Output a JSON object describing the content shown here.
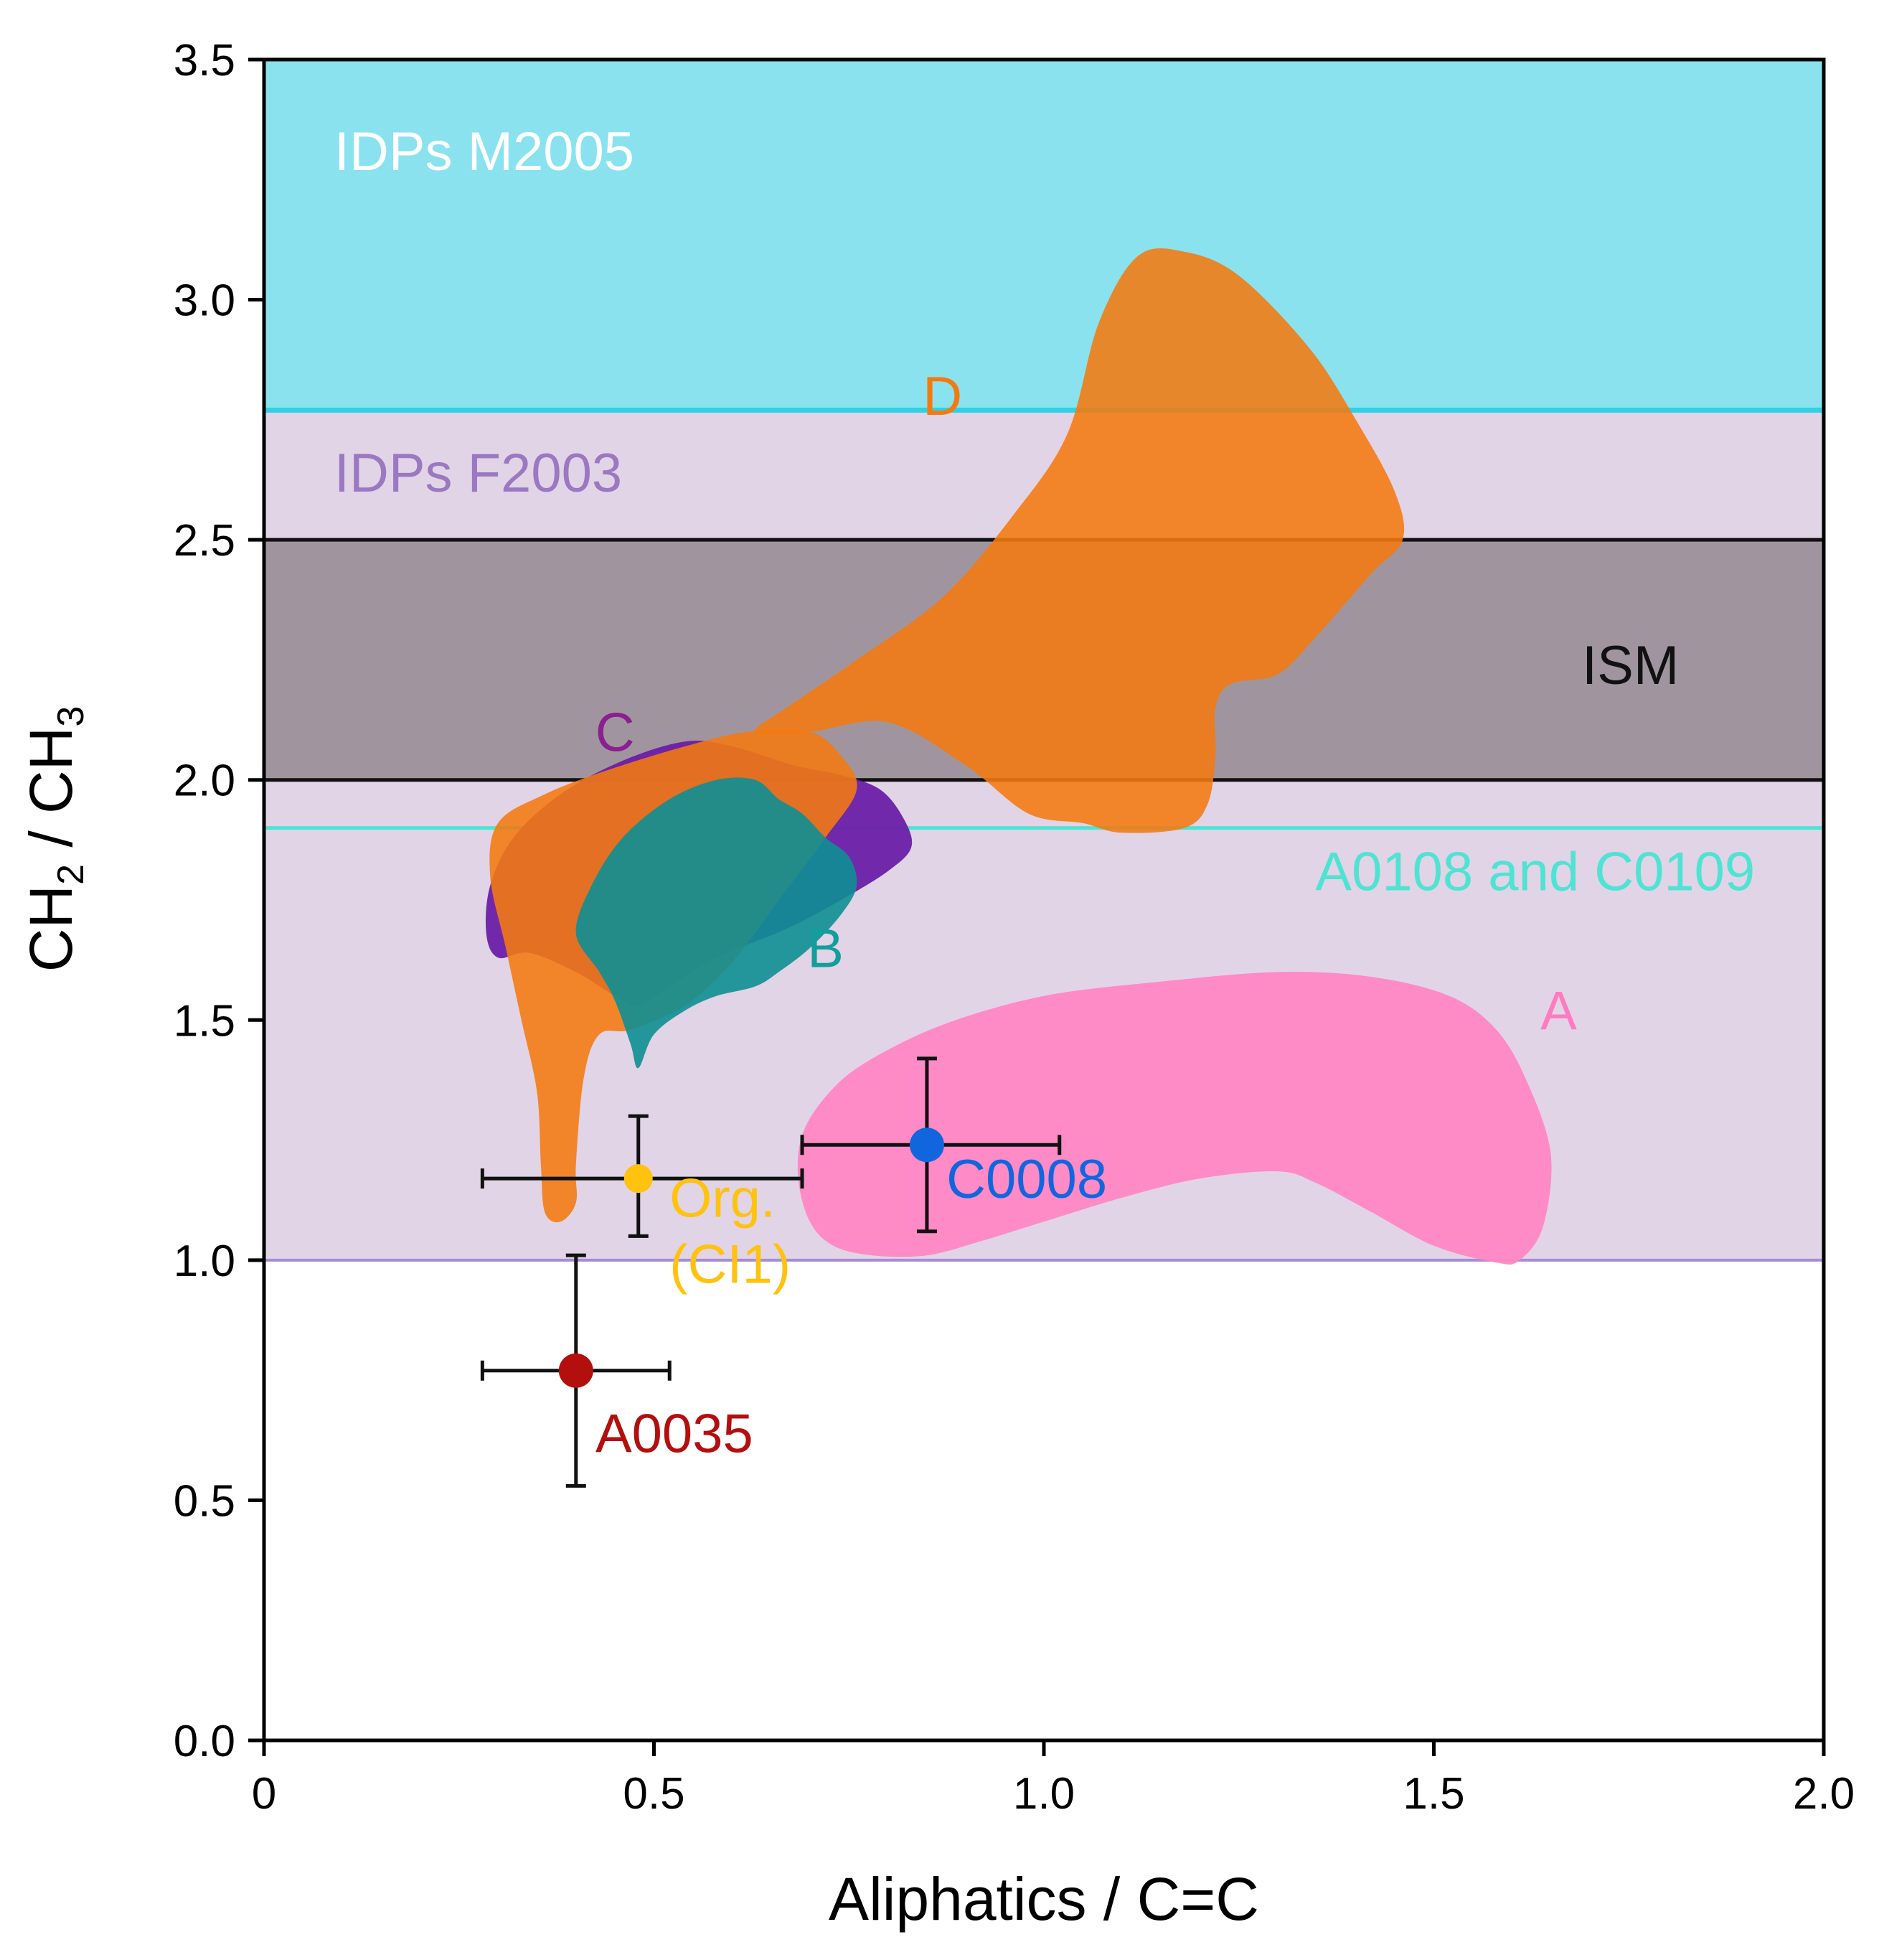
{
  "chart_data": {
    "type": "scatter",
    "xlabel": "Aliphatics / C=C",
    "ylabel": {
      "prefix": "CH",
      "sub1": "2",
      "mid": " / CH",
      "sub2": "3"
    },
    "xlim": [
      0,
      2.0
    ],
    "ylim": [
      0,
      3.5
    ],
    "x_ticks": [
      {
        "value": 0,
        "label": "0"
      },
      {
        "value": 0.5,
        "label": "0.5"
      },
      {
        "value": 1.0,
        "label": "1.0"
      },
      {
        "value": 1.5,
        "label": "1.5"
      },
      {
        "value": 2.0,
        "label": "2.0"
      }
    ],
    "y_ticks": [
      {
        "value": 0,
        "label": "0.0"
      },
      {
        "value": 0.5,
        "label": "0.5"
      },
      {
        "value": 1.0,
        "label": "1.0"
      },
      {
        "value": 1.5,
        "label": "1.5"
      },
      {
        "value": 2.0,
        "label": "2.0"
      },
      {
        "value": 2.5,
        "label": "2.5"
      },
      {
        "value": 3.0,
        "label": "3.0"
      },
      {
        "value": 3.5,
        "label": "3.5"
      }
    ],
    "bands": [
      {
        "name": "IDPs M2005",
        "label": "IDPs M2005",
        "y0": 2.77,
        "y1": 3.5,
        "fill": "#8ae2ef",
        "label_color": "#ffffff",
        "label_x": 0.09,
        "label_y": 3.27
      },
      {
        "name": "IDPs F2003",
        "label": "IDPs F2003",
        "y0": 1.0,
        "y1": 2.77,
        "fill": "#e1d4e6",
        "label_color": "#9b78c2",
        "label_x": 0.09,
        "label_y": 2.6
      },
      {
        "name": "ISM",
        "label": "ISM",
        "y0": 2.0,
        "y1": 2.5,
        "fill": "#a0959f",
        "label_color": "#111111",
        "label_x": 1.69,
        "label_y": 2.2
      }
    ],
    "lines": [
      {
        "name": "IDPs M2005 boundary",
        "y": 2.77,
        "color": "#2fd1e4",
        "width": 7
      },
      {
        "name": "ISM upper",
        "y": 2.5,
        "color": "#111111",
        "width": 5
      },
      {
        "name": "ISM lower",
        "y": 2.0,
        "color": "#111111",
        "width": 5
      },
      {
        "name": "A0108 and C0109",
        "y": 1.9,
        "color": "#4fe3d3",
        "width": 5
      },
      {
        "name": "IDPs F2003 lower",
        "y": 1.0,
        "color": "#a78bd6",
        "width": 4
      }
    ],
    "line_labels": [
      {
        "text": "A0108 and C0109",
        "x": 1.63,
        "y": 1.77,
        "color": "#4fe3d3"
      }
    ],
    "regions": [
      {
        "name": "A",
        "label": "A",
        "color": "#ff86c4",
        "opacity": 0.95,
        "label_color": "#ff7ac0",
        "label_x": 1.66,
        "label_y": 1.48,
        "polygon": [
          [
            0.77,
            1.41
          ],
          [
            0.87,
            1.49
          ],
          [
            1.0,
            1.55
          ],
          [
            1.15,
            1.58
          ],
          [
            1.3,
            1.6
          ],
          [
            1.42,
            1.59
          ],
          [
            1.52,
            1.55
          ],
          [
            1.58,
            1.48
          ],
          [
            1.62,
            1.37
          ],
          [
            1.65,
            1.22
          ],
          [
            1.64,
            1.07
          ],
          [
            1.61,
            1.0
          ],
          [
            1.58,
            0.995
          ],
          [
            1.5,
            1.03
          ],
          [
            1.42,
            1.1
          ],
          [
            1.35,
            1.16
          ],
          [
            1.3,
            1.185
          ],
          [
            1.2,
            1.17
          ],
          [
            1.1,
            1.13
          ],
          [
            1.0,
            1.08
          ],
          [
            0.92,
            1.04
          ],
          [
            0.85,
            1.01
          ],
          [
            0.78,
            1.01
          ],
          [
            0.73,
            1.03
          ],
          [
            0.7,
            1.08
          ],
          [
            0.685,
            1.17
          ],
          [
            0.69,
            1.26
          ],
          [
            0.72,
            1.34
          ]
        ]
      },
      {
        "name": "C",
        "label": "C",
        "color": "#6a1fa8",
        "opacity": 0.95,
        "label_color": "#8a1f8f",
        "label_x": 0.45,
        "label_y": 2.06,
        "polygon": [
          [
            0.3,
            1.63
          ],
          [
            0.34,
            1.64
          ],
          [
            0.4,
            1.6
          ],
          [
            0.45,
            1.55
          ],
          [
            0.48,
            1.53
          ],
          [
            0.52,
            1.57
          ],
          [
            0.58,
            1.63
          ],
          [
            0.67,
            1.69
          ],
          [
            0.74,
            1.75
          ],
          [
            0.8,
            1.81
          ],
          [
            0.83,
            1.86
          ],
          [
            0.82,
            1.92
          ],
          [
            0.79,
            1.98
          ],
          [
            0.74,
            2.01
          ],
          [
            0.68,
            2.03
          ],
          [
            0.6,
            2.07
          ],
          [
            0.54,
            2.08
          ],
          [
            0.46,
            2.04
          ],
          [
            0.38,
            1.97
          ],
          [
            0.32,
            1.88
          ],
          [
            0.29,
            1.78
          ],
          [
            0.285,
            1.68
          ]
        ]
      },
      {
        "name": "D",
        "label": "D",
        "color": "#f47a10",
        "opacity": 0.88,
        "label_color": "#f47a10",
        "label_x": 0.87,
        "label_y": 2.76,
        "polygon": [
          [
            1.03,
            2.72
          ],
          [
            0.96,
            2.55
          ],
          [
            0.87,
            2.38
          ],
          [
            0.76,
            2.25
          ],
          [
            0.67,
            2.15
          ],
          [
            0.63,
            2.1
          ],
          [
            0.7,
            2.1
          ],
          [
            0.8,
            2.12
          ],
          [
            0.9,
            2.03
          ],
          [
            0.98,
            1.93
          ],
          [
            1.05,
            1.91
          ],
          [
            1.1,
            1.89
          ],
          [
            1.18,
            1.9
          ],
          [
            1.21,
            1.95
          ],
          [
            1.22,
            2.05
          ],
          [
            1.22,
            2.15
          ],
          [
            1.24,
            2.2
          ],
          [
            1.3,
            2.22
          ],
          [
            1.35,
            2.3
          ],
          [
            1.42,
            2.43
          ],
          [
            1.46,
            2.5
          ],
          [
            1.45,
            2.6
          ],
          [
            1.4,
            2.75
          ],
          [
            1.34,
            2.9
          ],
          [
            1.25,
            3.05
          ],
          [
            1.18,
            3.1
          ],
          [
            1.12,
            3.09
          ],
          [
            1.07,
            2.95
          ]
        ]
      },
      {
        "name": "D (tail)",
        "label": "",
        "color": "#f47a10",
        "opacity": 0.88,
        "polygon": [
          [
            0.29,
            1.8
          ],
          [
            0.3,
            1.91
          ],
          [
            0.36,
            1.97
          ],
          [
            0.44,
            2.02
          ],
          [
            0.54,
            2.07
          ],
          [
            0.62,
            2.1
          ],
          [
            0.7,
            2.1
          ],
          [
            0.74,
            2.05
          ],
          [
            0.76,
            1.98
          ],
          [
            0.72,
            1.88
          ],
          [
            0.66,
            1.75
          ],
          [
            0.6,
            1.62
          ],
          [
            0.54,
            1.53
          ],
          [
            0.47,
            1.48
          ],
          [
            0.43,
            1.47
          ],
          [
            0.41,
            1.38
          ],
          [
            0.4,
            1.2
          ],
          [
            0.4,
            1.12
          ],
          [
            0.38,
            1.08
          ],
          [
            0.36,
            1.1
          ],
          [
            0.355,
            1.2
          ],
          [
            0.35,
            1.35
          ],
          [
            0.33,
            1.5
          ],
          [
            0.31,
            1.65
          ]
        ]
      },
      {
        "name": "B",
        "label": "B",
        "color": "#0e8f93",
        "opacity": 0.9,
        "label_color": "#119e9c",
        "label_x": 0.72,
        "label_y": 1.61,
        "polygon": [
          [
            0.48,
            1.4
          ],
          [
            0.5,
            1.47
          ],
          [
            0.54,
            1.52
          ],
          [
            0.58,
            1.55
          ],
          [
            0.63,
            1.57
          ],
          [
            0.66,
            1.6
          ],
          [
            0.7,
            1.65
          ],
          [
            0.74,
            1.72
          ],
          [
            0.76,
            1.78
          ],
          [
            0.75,
            1.84
          ],
          [
            0.72,
            1.88
          ],
          [
            0.69,
            1.93
          ],
          [
            0.66,
            1.96
          ],
          [
            0.63,
            2.0
          ],
          [
            0.58,
            2.0
          ],
          [
            0.52,
            1.96
          ],
          [
            0.46,
            1.88
          ],
          [
            0.42,
            1.78
          ],
          [
            0.4,
            1.68
          ],
          [
            0.43,
            1.6
          ],
          [
            0.45,
            1.54
          ],
          [
            0.47,
            1.45
          ]
        ]
      }
    ],
    "series": [
      {
        "name": "Org. (CI1)",
        "x": 0.48,
        "y": 1.17,
        "x_err": [
          0.28,
          0.69
        ],
        "y_err": [
          1.05,
          1.3
        ],
        "color": "#ffc20e",
        "marker_radius": 20,
        "labels": [
          "Org.",
          "(CI1)"
        ],
        "label_x": 0.52,
        "label_y": 1.09,
        "label_color": "#ffc20e"
      },
      {
        "name": "C0008",
        "x": 0.85,
        "y": 1.24,
        "x_err": [
          0.69,
          1.02
        ],
        "y_err": [
          1.06,
          1.42
        ],
        "color": "#1166dd",
        "marker_radius": 24,
        "labels": [
          "C0008"
        ],
        "label_x": 0.875,
        "label_y": 1.13,
        "label_color": "#1166dd"
      },
      {
        "name": "A0035",
        "x": 0.4,
        "y": 0.77,
        "x_err": [
          0.28,
          0.52
        ],
        "y_err": [
          0.53,
          1.01
        ],
        "color": "#b30f0f",
        "marker_radius": 24,
        "labels": [
          "A0035"
        ],
        "label_x": 0.425,
        "label_y": 0.6,
        "label_color": "#b30f0f"
      }
    ]
  }
}
